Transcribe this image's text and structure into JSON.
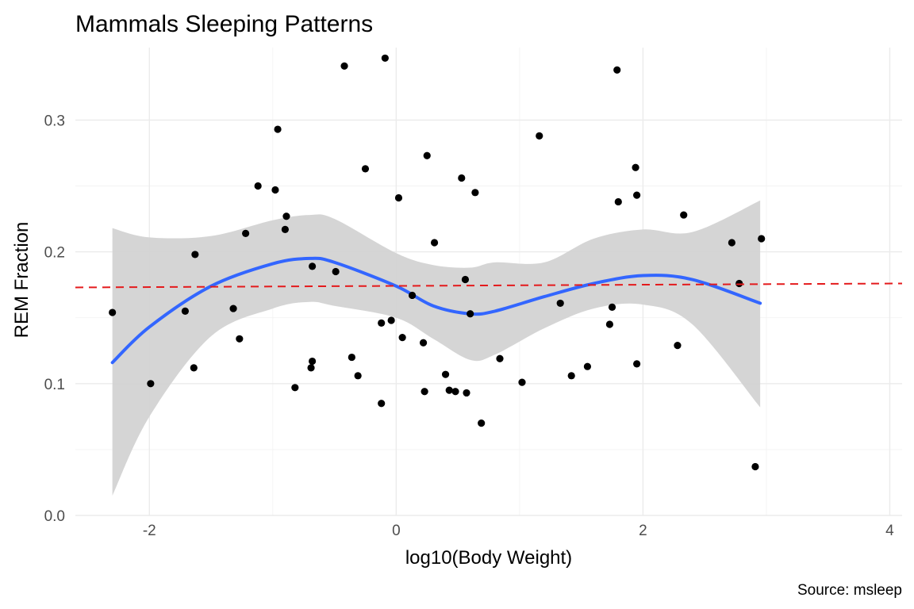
{
  "chart_data": {
    "type": "scatter",
    "title": "Mammals Sleeping Patterns",
    "xlabel": "log10(Body Weight)",
    "ylabel": "REM Fraction",
    "caption": "Source: msleep",
    "xlim": [
      -2.6,
      4.1
    ],
    "ylim": [
      0,
      0.355
    ],
    "x_ticks": [
      -2,
      0,
      2,
      4
    ],
    "x_tick_labels": [
      "-2",
      "0",
      "2",
      "4"
    ],
    "y_ticks": [
      0.0,
      0.1,
      0.2,
      0.3
    ],
    "y_tick_labels": [
      "0.0",
      "0.1",
      "0.2",
      "0.3"
    ],
    "x_minor": [
      -1,
      1,
      3
    ],
    "y_minor": [
      0.05,
      0.15,
      0.25
    ],
    "grid": true,
    "colors": {
      "points": "#000000",
      "smooth": "#3366ff",
      "ribbon": "#d3d3d3",
      "reference": "#e41a1c"
    },
    "points": [
      {
        "x": -2.3,
        "y": 0.154
      },
      {
        "x": -1.99,
        "y": 0.1
      },
      {
        "x": -1.71,
        "y": 0.155
      },
      {
        "x": -1.64,
        "y": 0.112
      },
      {
        "x": -1.63,
        "y": 0.198
      },
      {
        "x": -1.32,
        "y": 0.157
      },
      {
        "x": -1.27,
        "y": 0.134
      },
      {
        "x": -1.22,
        "y": 0.214
      },
      {
        "x": -1.12,
        "y": 0.25
      },
      {
        "x": -0.98,
        "y": 0.247
      },
      {
        "x": -0.96,
        "y": 0.293
      },
      {
        "x": -0.89,
        "y": 0.227
      },
      {
        "x": -0.9,
        "y": 0.217
      },
      {
        "x": -0.82,
        "y": 0.097
      },
      {
        "x": -0.69,
        "y": 0.112
      },
      {
        "x": -0.68,
        "y": 0.117
      },
      {
        "x": -0.68,
        "y": 0.189
      },
      {
        "x": -0.49,
        "y": 0.185
      },
      {
        "x": -0.42,
        "y": 0.341
      },
      {
        "x": -0.36,
        "y": 0.12
      },
      {
        "x": -0.31,
        "y": 0.106
      },
      {
        "x": -0.25,
        "y": 0.263
      },
      {
        "x": -0.12,
        "y": 0.085
      },
      {
        "x": -0.12,
        "y": 0.146
      },
      {
        "x": -0.09,
        "y": 0.347
      },
      {
        "x": -0.04,
        "y": 0.148
      },
      {
        "x": 0.02,
        "y": 0.241
      },
      {
        "x": 0.05,
        "y": 0.135
      },
      {
        "x": 0.13,
        "y": 0.167
      },
      {
        "x": 0.22,
        "y": 0.131
      },
      {
        "x": 0.23,
        "y": 0.094
      },
      {
        "x": 0.25,
        "y": 0.273
      },
      {
        "x": 0.31,
        "y": 0.207
      },
      {
        "x": 0.4,
        "y": 0.107
      },
      {
        "x": 0.43,
        "y": 0.095
      },
      {
        "x": 0.48,
        "y": 0.094
      },
      {
        "x": 0.53,
        "y": 0.256
      },
      {
        "x": 0.56,
        "y": 0.179
      },
      {
        "x": 0.57,
        "y": 0.093
      },
      {
        "x": 0.6,
        "y": 0.153
      },
      {
        "x": 0.64,
        "y": 0.245
      },
      {
        "x": 0.69,
        "y": 0.07
      },
      {
        "x": 0.84,
        "y": 0.119
      },
      {
        "x": 1.02,
        "y": 0.101
      },
      {
        "x": 1.16,
        "y": 0.288
      },
      {
        "x": 1.33,
        "y": 0.161
      },
      {
        "x": 1.42,
        "y": 0.106
      },
      {
        "x": 1.55,
        "y": 0.113
      },
      {
        "x": 1.73,
        "y": 0.145
      },
      {
        "x": 1.75,
        "y": 0.158
      },
      {
        "x": 1.79,
        "y": 0.338
      },
      {
        "x": 1.8,
        "y": 0.238
      },
      {
        "x": 1.94,
        "y": 0.264
      },
      {
        "x": 1.95,
        "y": 0.243
      },
      {
        "x": 1.95,
        "y": 0.115
      },
      {
        "x": 2.28,
        "y": 0.129
      },
      {
        "x": 2.33,
        "y": 0.228
      },
      {
        "x": 2.72,
        "y": 0.207
      },
      {
        "x": 2.78,
        "y": 0.176
      },
      {
        "x": 2.91,
        "y": 0.037
      },
      {
        "x": 2.96,
        "y": 0.21
      }
    ],
    "smooth": {
      "x": [
        -2.3,
        -2.0,
        -1.5,
        -1.0,
        -0.7,
        -0.5,
        0.0,
        0.3,
        0.6,
        0.8,
        1.2,
        1.6,
        2.0,
        2.4,
        2.95
      ],
      "y": [
        0.116,
        0.143,
        0.174,
        0.191,
        0.195,
        0.192,
        0.174,
        0.159,
        0.153,
        0.155,
        0.166,
        0.176,
        0.182,
        0.179,
        0.161
      ],
      "lower": [
        0.015,
        0.075,
        0.136,
        0.157,
        0.162,
        0.159,
        0.15,
        0.134,
        0.118,
        0.122,
        0.142,
        0.157,
        0.16,
        0.145,
        0.082
      ],
      "upper": [
        0.218,
        0.211,
        0.212,
        0.224,
        0.228,
        0.225,
        0.199,
        0.19,
        0.188,
        0.192,
        0.192,
        0.21,
        0.217,
        0.215,
        0.239
      ]
    },
    "reference_line": {
      "type": "dashed",
      "x": [
        -2.6,
        4.1
      ],
      "y": [
        0.173,
        0.176
      ]
    }
  }
}
